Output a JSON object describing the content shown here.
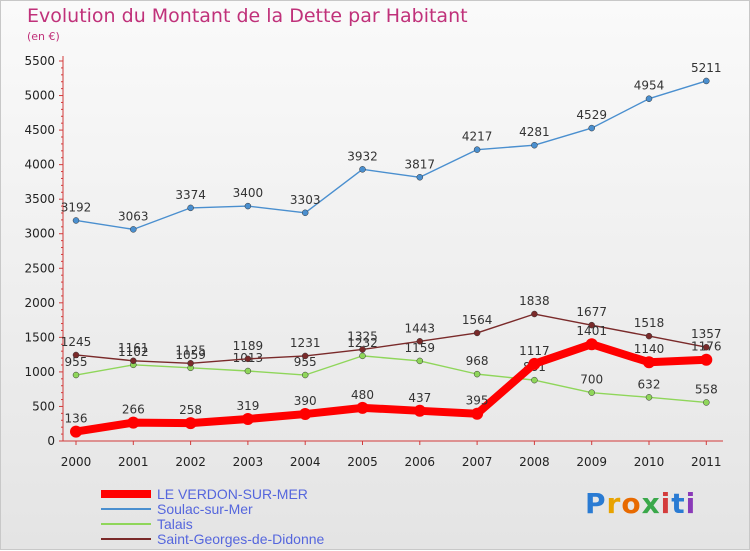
{
  "header": {
    "title": "Evolution du Montant de la Dette par Habitant",
    "unit": "(en €)"
  },
  "brand": {
    "name": "Proxiti",
    "letters": [
      "P",
      "r",
      "o",
      "x",
      "i",
      "t",
      "i"
    ],
    "letter_colors": [
      "#2a7bd3",
      "#e8a300",
      "#e86a00",
      "#3aa84a",
      "#d43c3c",
      "#2a7bd3",
      "#8a3ab8"
    ]
  },
  "chart_data": {
    "type": "line",
    "title": "Evolution du Montant de la Dette par Habitant",
    "ylabel": "(en €)",
    "xlabel": "",
    "x": [
      "2000",
      "2001",
      "2002",
      "2003",
      "2004",
      "2005",
      "2006",
      "2007",
      "2008",
      "2009",
      "2010",
      "2011"
    ],
    "ylim": [
      0,
      5500
    ],
    "yticks": [
      "0",
      "500",
      "1000",
      "1500",
      "2000",
      "2500",
      "3000",
      "3500",
      "4000",
      "4500",
      "5000",
      "5500"
    ],
    "grid": false,
    "legend_position": "bottom-left",
    "series": [
      {
        "name": "LE VERDON-SUR-MER",
        "color": "#ff0000",
        "values": [
          136,
          266,
          258,
          319,
          390,
          480,
          437,
          395,
          1117,
          1401,
          1140,
          1176
        ],
        "labels": [
          "136",
          "266",
          "258",
          "319",
          "390",
          "480",
          "437",
          "395",
          "1117",
          "1401",
          "1140",
          "1176"
        ],
        "emphasis": true
      },
      {
        "name": "Soulac-sur-Mer",
        "color": "#4a8fcf",
        "values": [
          3192,
          3063,
          3374,
          3400,
          3303,
          3932,
          3817,
          4217,
          4281,
          4529,
          4954,
          5211
        ],
        "labels": [
          "3192",
          "3063",
          "3374",
          "3400",
          "3303",
          "3932",
          "3817",
          "4217",
          "4281",
          "4529",
          "4954",
          "5211"
        ],
        "emphasis": false
      },
      {
        "name": "Talais",
        "color": "#8fd65a",
        "values": [
          955,
          1102,
          1059,
          1013,
          955,
          1232,
          1159,
          968,
          881,
          700,
          632,
          558
        ],
        "labels": [
          "955",
          "1102",
          "1059",
          "1013",
          "955",
          "1232",
          "1159",
          "968",
          "881",
          "700",
          "632",
          "558"
        ],
        "emphasis": false
      },
      {
        "name": "Saint-Georges-de-Didonne",
        "color": "#7a2a2a",
        "values": [
          1245,
          1161,
          1125,
          1189,
          1231,
          1325,
          1443,
          1564,
          1838,
          1677,
          1518,
          1357
        ],
        "labels": [
          "1245",
          "1161",
          "1125",
          "1189",
          "1231",
          "1325",
          "1443",
          "1564",
          "1838",
          "1677",
          "1518",
          "1357"
        ],
        "emphasis": false
      }
    ]
  }
}
